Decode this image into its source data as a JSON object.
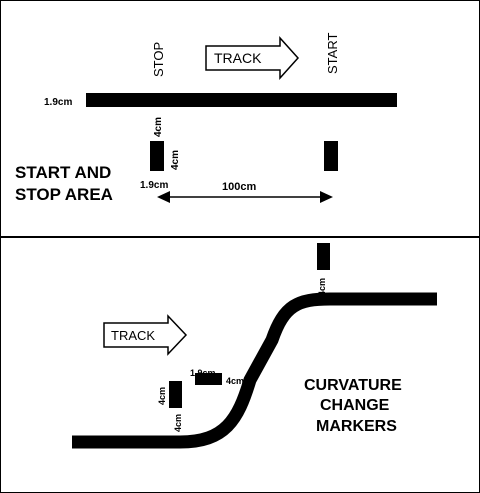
{
  "top_panel": {
    "stop_label": "STOP",
    "start_label": "START",
    "track_arrow_label": "TRACK",
    "line_width_label": "1.9cm",
    "marker_length_label_1": "4cm",
    "marker_length_label_2": "4cm",
    "marker_width_label": "1.9cm",
    "distance_label": "100cm",
    "area_title_line1": "START AND",
    "area_title_line2": "STOP AREA"
  },
  "bottom_panel": {
    "track_arrow_label": "TRACK",
    "top_marker_label": "4cm",
    "mid_marker_width_label": "1.9cm",
    "mid_marker_length_label": "4cm",
    "left_marker_length_label": "4cm",
    "left_marker_bottom_label": "4cm",
    "title_line1": "CURVATURE",
    "title_line2": "CHANGE",
    "title_line3": "MARKERS"
  },
  "colors": {
    "line": "#000000",
    "background": "#ffffff"
  }
}
